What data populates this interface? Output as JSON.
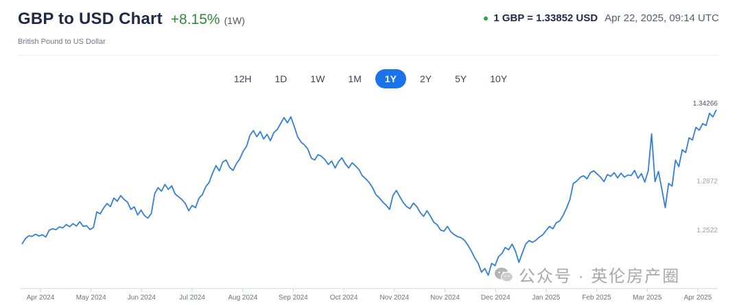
{
  "header": {
    "title": "GBP to USD Chart",
    "change": "+8.15%",
    "period": "(1W)",
    "subtitle": "British Pound to US Dollar",
    "rate": "1 GBP = 1.33852 USD",
    "timestamp": "Apr 22, 2025, 09:14 UTC"
  },
  "tabs": [
    {
      "label": "12H",
      "active": false
    },
    {
      "label": "1D",
      "active": false
    },
    {
      "label": "1W",
      "active": false
    },
    {
      "label": "1M",
      "active": false
    },
    {
      "label": "1Y",
      "active": true
    },
    {
      "label": "2Y",
      "active": false
    },
    {
      "label": "5Y",
      "active": false
    },
    {
      "label": "10Y",
      "active": false
    }
  ],
  "colors": {
    "line": "#2f7fd6",
    "accent": "#1a73e8",
    "positive": "#2e8b3a"
  },
  "chart_data": {
    "type": "line",
    "grid": false,
    "ylim": [
      1.215,
      1.346
    ],
    "x_ticks": [
      "Apr 2024",
      "May 2024",
      "Jun 2024",
      "Jul 2024",
      "Aug 2024",
      "Sep 2024",
      "Oct 2024",
      "Nov 2024",
      "Nov 2024",
      "Dec 2024",
      "Jan 2025",
      "Feb 2025",
      "Mar 2025",
      "Apr 2025"
    ],
    "y_ticks": [
      "1.34266",
      "1.2872",
      "1.2522"
    ],
    "series": [
      {
        "values": [
          1.2452,
          1.2491,
          1.2511,
          1.2508,
          1.2523,
          1.251,
          1.2519,
          1.2503,
          1.2551,
          1.2562,
          1.2555,
          1.2575,
          1.2568,
          1.2592,
          1.2576,
          1.2598,
          1.2581,
          1.2612,
          1.2579,
          1.2583,
          1.2556,
          1.2571,
          1.2682,
          1.2668,
          1.271,
          1.2742,
          1.272,
          1.2781,
          1.2758,
          1.2798,
          1.2771,
          1.2752,
          1.27,
          1.2718,
          1.266,
          1.2695,
          1.2655,
          1.2638,
          1.267,
          1.2812,
          1.2855,
          1.283,
          1.2878,
          1.2842,
          1.2868,
          1.281,
          1.279,
          1.277,
          1.2742,
          1.269,
          1.2728,
          1.2712,
          1.278,
          1.2805,
          1.2862,
          1.2892,
          1.2958,
          1.3012,
          1.2975,
          1.3038,
          1.3052,
          1.3,
          1.2978,
          1.3025,
          1.306,
          1.3115,
          1.315,
          1.323,
          1.3262,
          1.3218,
          1.3255,
          1.3202,
          1.3235,
          1.319,
          1.3248,
          1.327,
          1.3312,
          1.3355,
          1.3318,
          1.336,
          1.3292,
          1.3218,
          1.318,
          1.316,
          1.313,
          1.3065,
          1.3052,
          1.309,
          1.3078,
          1.3055,
          1.302,
          1.3045,
          1.2995,
          1.304,
          1.3068,
          1.3025,
          1.2995,
          1.3032,
          1.301,
          1.2985,
          1.294,
          1.2918,
          1.2892,
          1.2855,
          1.2805,
          1.2782,
          1.2752,
          1.273,
          1.27,
          1.2798,
          1.2835,
          1.2792,
          1.275,
          1.272,
          1.2705,
          1.2745,
          1.272,
          1.2678,
          1.265,
          1.269,
          1.2652,
          1.2608,
          1.259,
          1.2552,
          1.2545,
          1.2578,
          1.254,
          1.252,
          1.2505,
          1.2498,
          1.248,
          1.2445,
          1.2405,
          1.2355,
          1.2318,
          1.2252,
          1.2278,
          1.223,
          1.2315,
          1.2298,
          1.2362,
          1.2385,
          1.2428,
          1.2412,
          1.2452,
          1.2402,
          1.2322,
          1.2388,
          1.2452,
          1.2478,
          1.2465,
          1.248,
          1.2502,
          1.2518,
          1.255,
          1.2578,
          1.2562,
          1.2605,
          1.2618,
          1.2658,
          1.2708,
          1.2772,
          1.2885,
          1.2902,
          1.2928,
          1.294,
          1.2918,
          1.2962,
          1.2975,
          1.2952,
          1.293,
          1.2898,
          1.2948,
          1.2936,
          1.2962,
          1.2925,
          1.2958,
          1.293,
          1.2945,
          1.2942,
          1.2978,
          1.2922,
          1.2955,
          1.2895,
          1.2975,
          1.3238,
          1.2898,
          1.297,
          1.2845,
          1.2712,
          1.2885,
          1.2865,
          1.3052,
          1.3005,
          1.3125,
          1.3105,
          1.321,
          1.3195,
          1.3285,
          1.3265,
          1.3312,
          1.3298,
          1.3385,
          1.336,
          1.341
        ]
      }
    ]
  },
  "watermark": {
    "text": "公众号 · 英伦房产圈",
    "icon": "wechat-icon"
  }
}
